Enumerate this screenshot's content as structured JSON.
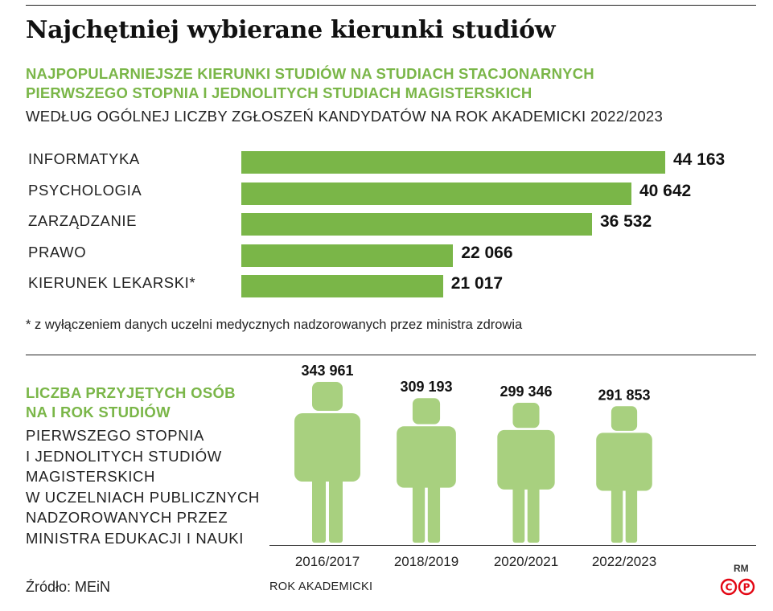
{
  "title": "Najchętniej wybierane kierunki studiów",
  "section1": {
    "subtitle_line1": "NAJPOPULARNIEJSZE KIERUNKI STUDIÓW NA STUDIACH STACJONARNYCH",
    "subtitle_line2": "PIERWSZEGO STOPNIA I JEDNOLITYCH STUDIACH MAGISTERSKICH",
    "subtitle_line3": "WEDŁUG OGÓLNEJ LICZBY ZGŁOSZEŃ KANDYDATÓW NA ROK AKADEMICKI 2022/2023",
    "footnote": "* z wyłączeniem danych uczelni medycznych nadzorowanych przez ministra zdrowia"
  },
  "section2": {
    "green_line1": "LICZBA PRZYJĘTYCH OSÓB",
    "green_line2": "NA I ROK STUDIÓW",
    "lines": [
      "PIERWSZEGO STOPNIA",
      "I JEDNOLITYCH STUDIÓW",
      "MAGISTERSKICH",
      "W UCZELNIACH PUBLICZNYCH",
      "NADZOROWANYCH PRZEZ",
      "MINISTRA EDUKACJI I NAUKI"
    ]
  },
  "colors": {
    "bar": "#7ab648",
    "accent_text": "#7ab648",
    "person": "#a8d07f",
    "logo": "#e30613"
  },
  "chart_data": [
    {
      "type": "bar",
      "orientation": "horizontal",
      "categories": [
        "INFORMATYKA",
        "PSYCHOLOGIA",
        "ZARZĄDZANIE",
        "PRAWO",
        "KIERUNEK LEKARSKI*"
      ],
      "values": [
        44163,
        40642,
        36532,
        22066,
        21017
      ],
      "value_labels": [
        "44 163",
        "40 642",
        "36 532",
        "22 066",
        "21 017"
      ]
    },
    {
      "type": "bar",
      "style": "pictogram",
      "categories": [
        "2016/2017",
        "2018/2019",
        "2020/2021",
        "2022/2023"
      ],
      "values": [
        343961,
        309193,
        299346,
        291853
      ],
      "value_labels": [
        "343 961",
        "309 193",
        "299 346",
        "291 853"
      ],
      "xlabel": "ROK AKADEMICKI"
    }
  ],
  "footer": {
    "source": "Źródło: MEiN",
    "credit": "RM",
    "logo_left": "C",
    "logo_right": "P"
  }
}
